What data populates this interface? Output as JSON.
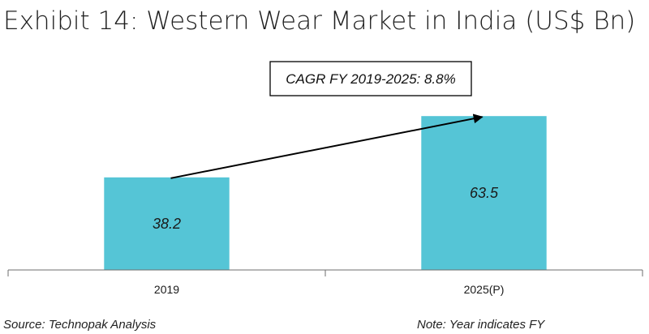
{
  "chart_data": {
    "type": "bar",
    "title": "Exhibit 14: Western Wear Market in India (US$ Bn)",
    "categories": [
      "2019",
      "2025(P)"
    ],
    "values": [
      38.2,
      63.5
    ],
    "data_labels": [
      "38.2",
      "63.5"
    ],
    "xlabel": "",
    "ylabel": "",
    "ylim": [
      0,
      90
    ],
    "grid": false,
    "legend": "none",
    "bar_color": "#55c5d6",
    "annotation": {
      "text": "CAGR FY 2019-2025: 8.8%",
      "type": "arrow",
      "from": "2019",
      "to": "2025(P)"
    }
  },
  "footer": {
    "source": "Source: Technopak Analysis",
    "note": "Note: Year indicates FY"
  }
}
